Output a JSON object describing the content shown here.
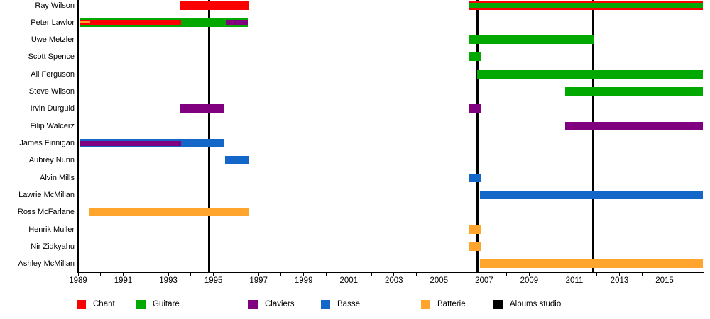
{
  "chart_data": {
    "type": "timeline",
    "title": "",
    "description": "Band members timeline by role with studio album release markers",
    "x_axis": {
      "min": 1989.0,
      "max": 2016.7,
      "tick_year_start": 1989,
      "tick_year_end": 2016,
      "tick_step": 1,
      "label_years": [
        1989,
        1991,
        1993,
        1995,
        1997,
        1999,
        2001,
        2003,
        2005,
        2007,
        2009,
        2011,
        2013,
        2015
      ]
    },
    "roles": {
      "chant": {
        "label": "Chant",
        "color": "#fa0000"
      },
      "guitare": {
        "label": "Guitare",
        "color": "#00a800"
      },
      "claviers": {
        "label": "Claviers",
        "color": "#800080"
      },
      "basse": {
        "label": "Basse",
        "color": "#1467c8"
      },
      "batterie": {
        "label": "Batterie",
        "color": "#ffa42d"
      },
      "albums": {
        "label": "Albums studio",
        "color": "#000000"
      }
    },
    "legend_order": [
      "chant",
      "guitare",
      "claviers",
      "basse",
      "batterie",
      "albums"
    ],
    "members": [
      {
        "name": "Ray Wilson",
        "bars": [
          {
            "role": "chant",
            "start": 1993.5,
            "end": 1996.6,
            "layer": 0
          },
          {
            "role": "chant",
            "start": 2006.35,
            "end": 2016.7,
            "layer": 0
          },
          {
            "role": "guitare",
            "start": 2006.35,
            "end": 2016.7,
            "layer": 1
          }
        ]
      },
      {
        "name": "Peter Lawlor",
        "bars": [
          {
            "role": "guitare",
            "start": 1989.05,
            "end": 1996.55,
            "layer": 0
          },
          {
            "role": "chant",
            "start": 1989.05,
            "end": 1993.55,
            "layer": 1
          },
          {
            "role": "batterie",
            "start": 1989.05,
            "end": 1989.55,
            "layer": 2
          },
          {
            "role": "claviers",
            "start": 1995.55,
            "end": 1996.55,
            "layer": 1
          }
        ]
      },
      {
        "name": "Uwe Metzler",
        "bars": [
          {
            "role": "guitare",
            "start": 2006.35,
            "end": 2011.85,
            "layer": 0
          }
        ]
      },
      {
        "name": "Scott Spence",
        "bars": [
          {
            "role": "guitare",
            "start": 2006.35,
            "end": 2006.85,
            "layer": 0
          }
        ]
      },
      {
        "name": "Ali Ferguson",
        "bars": [
          {
            "role": "guitare",
            "start": 2006.7,
            "end": 2016.7,
            "layer": 0
          }
        ]
      },
      {
        "name": "Steve Wilson",
        "bars": [
          {
            "role": "guitare",
            "start": 2010.6,
            "end": 2016.7,
            "layer": 0
          }
        ]
      },
      {
        "name": "Irvin Durguid",
        "bars": [
          {
            "role": "claviers",
            "start": 1993.5,
            "end": 1995.5,
            "layer": 0
          },
          {
            "role": "claviers",
            "start": 2006.35,
            "end": 2006.85,
            "layer": 0
          }
        ]
      },
      {
        "name": "Filip Walcerz",
        "bars": [
          {
            "role": "claviers",
            "start": 2010.6,
            "end": 2016.7,
            "layer": 0
          }
        ]
      },
      {
        "name": "James Finnigan",
        "bars": [
          {
            "role": "basse",
            "start": 1989.05,
            "end": 1995.5,
            "layer": 0
          },
          {
            "role": "claviers",
            "start": 1989.05,
            "end": 1993.55,
            "layer": 1
          }
        ]
      },
      {
        "name": "Aubrey Nunn",
        "bars": [
          {
            "role": "basse",
            "start": 1995.5,
            "end": 1996.6,
            "layer": 0
          }
        ]
      },
      {
        "name": "Alvin Mills",
        "bars": [
          {
            "role": "basse",
            "start": 2006.35,
            "end": 2006.85,
            "layer": 0
          }
        ]
      },
      {
        "name": "Lawrie McMillan",
        "bars": [
          {
            "role": "basse",
            "start": 2006.8,
            "end": 2016.7,
            "layer": 0
          }
        ]
      },
      {
        "name": "Ross McFarlane",
        "bars": [
          {
            "role": "batterie",
            "start": 1989.5,
            "end": 1996.6,
            "layer": 0
          }
        ]
      },
      {
        "name": "Henrik Muller",
        "bars": [
          {
            "role": "batterie",
            "start": 2006.35,
            "end": 2006.85,
            "layer": 0
          }
        ]
      },
      {
        "name": "Nir Zidkyahu",
        "bars": [
          {
            "role": "batterie",
            "start": 2006.35,
            "end": 2006.85,
            "layer": 0
          }
        ]
      },
      {
        "name": "Ashley McMillan",
        "bars": [
          {
            "role": "batterie",
            "start": 2006.8,
            "end": 2016.7,
            "layer": 0
          }
        ]
      }
    ],
    "albums_studio_years": [
      1994.8,
      2006.7,
      2011.85
    ]
  }
}
